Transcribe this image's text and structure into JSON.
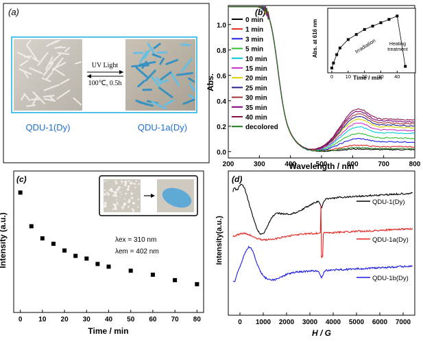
{
  "panel_a": {
    "label": "(a)",
    "arrow_text_top": "UV Light",
    "arrow_text_bottom": "100℃, 0.5h",
    "left_name": "QDU-1(Dy)",
    "right_name": "QDU-1a(Dy)",
    "accent_color": "#1f6fd1"
  },
  "chart_data": [
    {
      "type": "line",
      "panel": "(b)",
      "xlabel": "Wavelength / nm",
      "ylabel": "Abs.",
      "xlim": [
        200,
        800
      ],
      "ylim": [
        -0.05,
        1.15
      ],
      "xticks": [
        "200",
        "300",
        "400",
        "500",
        "600",
        "700",
        "800"
      ],
      "yticks": [
        "0.0",
        "0.2",
        "0.4",
        "0.6",
        "0.8",
        "1.0"
      ],
      "legend_position": "top-left",
      "series": [
        {
          "name": "0 min",
          "color": "#000000",
          "peak616": 0.02
        },
        {
          "name": "1 min",
          "color": "#e8231f",
          "peak616": 0.05
        },
        {
          "name": "3 min",
          "color": "#1a1ae6",
          "peak616": 0.1
        },
        {
          "name": "5 min",
          "color": "#2fbf2f",
          "peak616": 0.14
        },
        {
          "name": "10 min",
          "color": "#00c8e0",
          "peak616": 0.19
        },
        {
          "name": "15 min",
          "color": "#d22fd2",
          "peak616": 0.22
        },
        {
          "name": "20 min",
          "color": "#d8d000",
          "peak616": 0.25
        },
        {
          "name": "25 min",
          "color": "#1f1f8f",
          "peak616": 0.27
        },
        {
          "name": "30 min",
          "color": "#a83232",
          "peak616": 0.29
        },
        {
          "name": "35 min",
          "color": "#800080",
          "peak616": 0.31
        },
        {
          "name": "40 min",
          "color": "#8a0f4a",
          "peak616": 0.33
        },
        {
          "name": "decolored",
          "color": "#1a7a1a",
          "peak616": 0.03
        }
      ]
    },
    {
      "type": "line",
      "panel": "(b) inset",
      "xlabel": "Time / min",
      "ylabel": "Abs. at 616 nm",
      "xticks": [
        "0",
        "10",
        "20",
        "30",
        "40"
      ],
      "annotations": [
        "Irradiation",
        "Heating treatment"
      ],
      "x": [
        0,
        1,
        3,
        5,
        10,
        15,
        20,
        25,
        30,
        35,
        40,
        45
      ],
      "y": [
        0.02,
        0.05,
        0.1,
        0.14,
        0.19,
        0.22,
        0.25,
        0.27,
        0.29,
        0.31,
        0.33,
        0.03
      ]
    },
    {
      "type": "scatter",
      "panel": "(c)",
      "xlabel": "Time / min",
      "ylabel": "Intensity (a.u.)",
      "xlim": [
        -3,
        83
      ],
      "ylim": [
        0,
        1.05
      ],
      "xticks": [
        "0",
        "10",
        "20",
        "30",
        "40",
        "50",
        "60",
        "70",
        "80"
      ],
      "annotation_ex": "λex = 310 nm",
      "annotation_em": "λem = 402 nm",
      "x": [
        0,
        5,
        10,
        15,
        20,
        25,
        30,
        35,
        40,
        50,
        60,
        70,
        80
      ],
      "y": [
        0.89,
        0.64,
        0.55,
        0.51,
        0.46,
        0.42,
        0.4,
        0.36,
        0.34,
        0.31,
        0.28,
        0.24,
        0.21
      ]
    },
    {
      "type": "line",
      "panel": "(d)",
      "xlabel": "H / G",
      "ylabel": "Intensity(a.u.)",
      "xlim": [
        -500,
        7500
      ],
      "xticks": [
        "0",
        "1000",
        "2000",
        "3000",
        "4000",
        "5000",
        "6000",
        "7000"
      ],
      "legend_position": "right",
      "series": [
        {
          "name": "QDU-1(Dy)",
          "color": "#000000"
        },
        {
          "name": "QDU-1a(Dy)",
          "color": "#e8231f"
        },
        {
          "name": "QDU-1b(Dy)",
          "color": "#1a1ae6"
        }
      ]
    }
  ]
}
